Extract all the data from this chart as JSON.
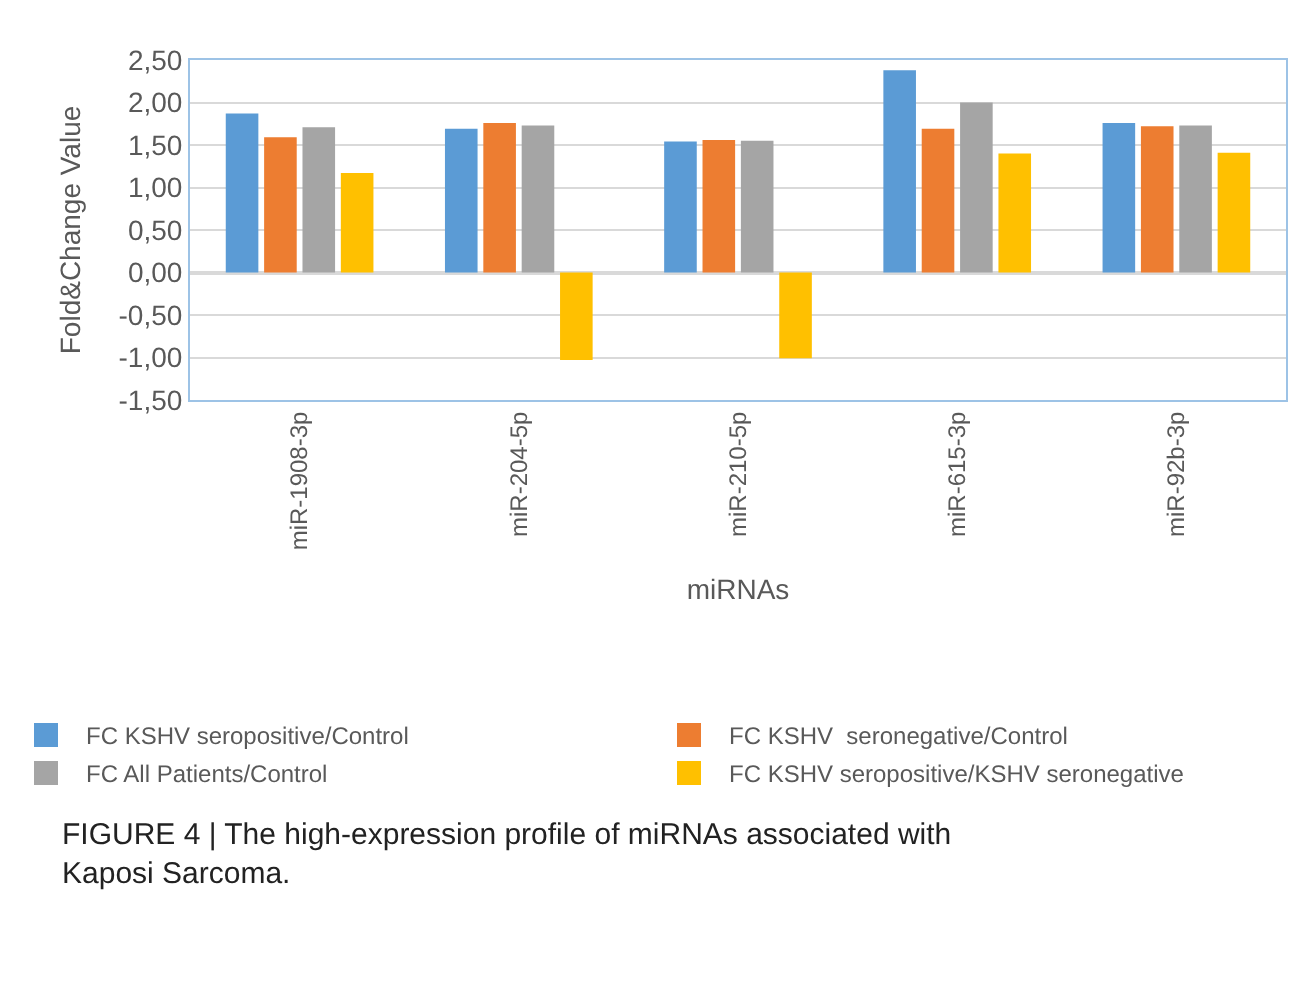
{
  "chart_data": {
    "type": "bar",
    "xlabel": "miRNAs",
    "ylabel": "Fold&Change Value",
    "categories": [
      "miR-1908-3p",
      "miR-204-5p",
      "miR-210-5p",
      "miR-615-3p",
      "miR-92b-3p"
    ],
    "series": [
      {
        "name": "FC KSHV seropositive/Control",
        "color": "#5b9bd5",
        "values": [
          1.87,
          1.69,
          1.54,
          2.38,
          1.76
        ]
      },
      {
        "name": "FC KSHV  seronegative/Control",
        "color": "#ed7d31",
        "values": [
          1.59,
          1.76,
          1.56,
          1.69,
          1.72
        ]
      },
      {
        "name": "FC All Patients/Control",
        "color": "#a5a5a5",
        "values": [
          1.71,
          1.73,
          1.55,
          2.0,
          1.73
        ]
      },
      {
        "name": "FC KSHV seropositive/KSHV seronegative",
        "color": "#ffc000",
        "values": [
          1.17,
          -1.03,
          -1.01,
          1.4,
          1.41
        ]
      }
    ],
    "ylim": [
      -1.5,
      2.5
    ],
    "yticks": [
      {
        "value": -1.5,
        "label": "-1,50"
      },
      {
        "value": -1.0,
        "label": "-1,00"
      },
      {
        "value": -0.5,
        "label": "-0,50"
      },
      {
        "value": 0,
        "label": "0,00"
      },
      {
        "value": 0.5,
        "label": "0,50"
      },
      {
        "value": 1.0,
        "label": "1,00"
      },
      {
        "value": 1.5,
        "label": "1,50"
      },
      {
        "value": 2.0,
        "label": "2,00"
      },
      {
        "value": 2.5,
        "label": "2,50"
      }
    ],
    "grid": "y",
    "legend": "bottom",
    "annotations": [
      "FIGURE 4 | The high-expression profile of miRNAs associated with Kaposi Sarcoma."
    ]
  }
}
